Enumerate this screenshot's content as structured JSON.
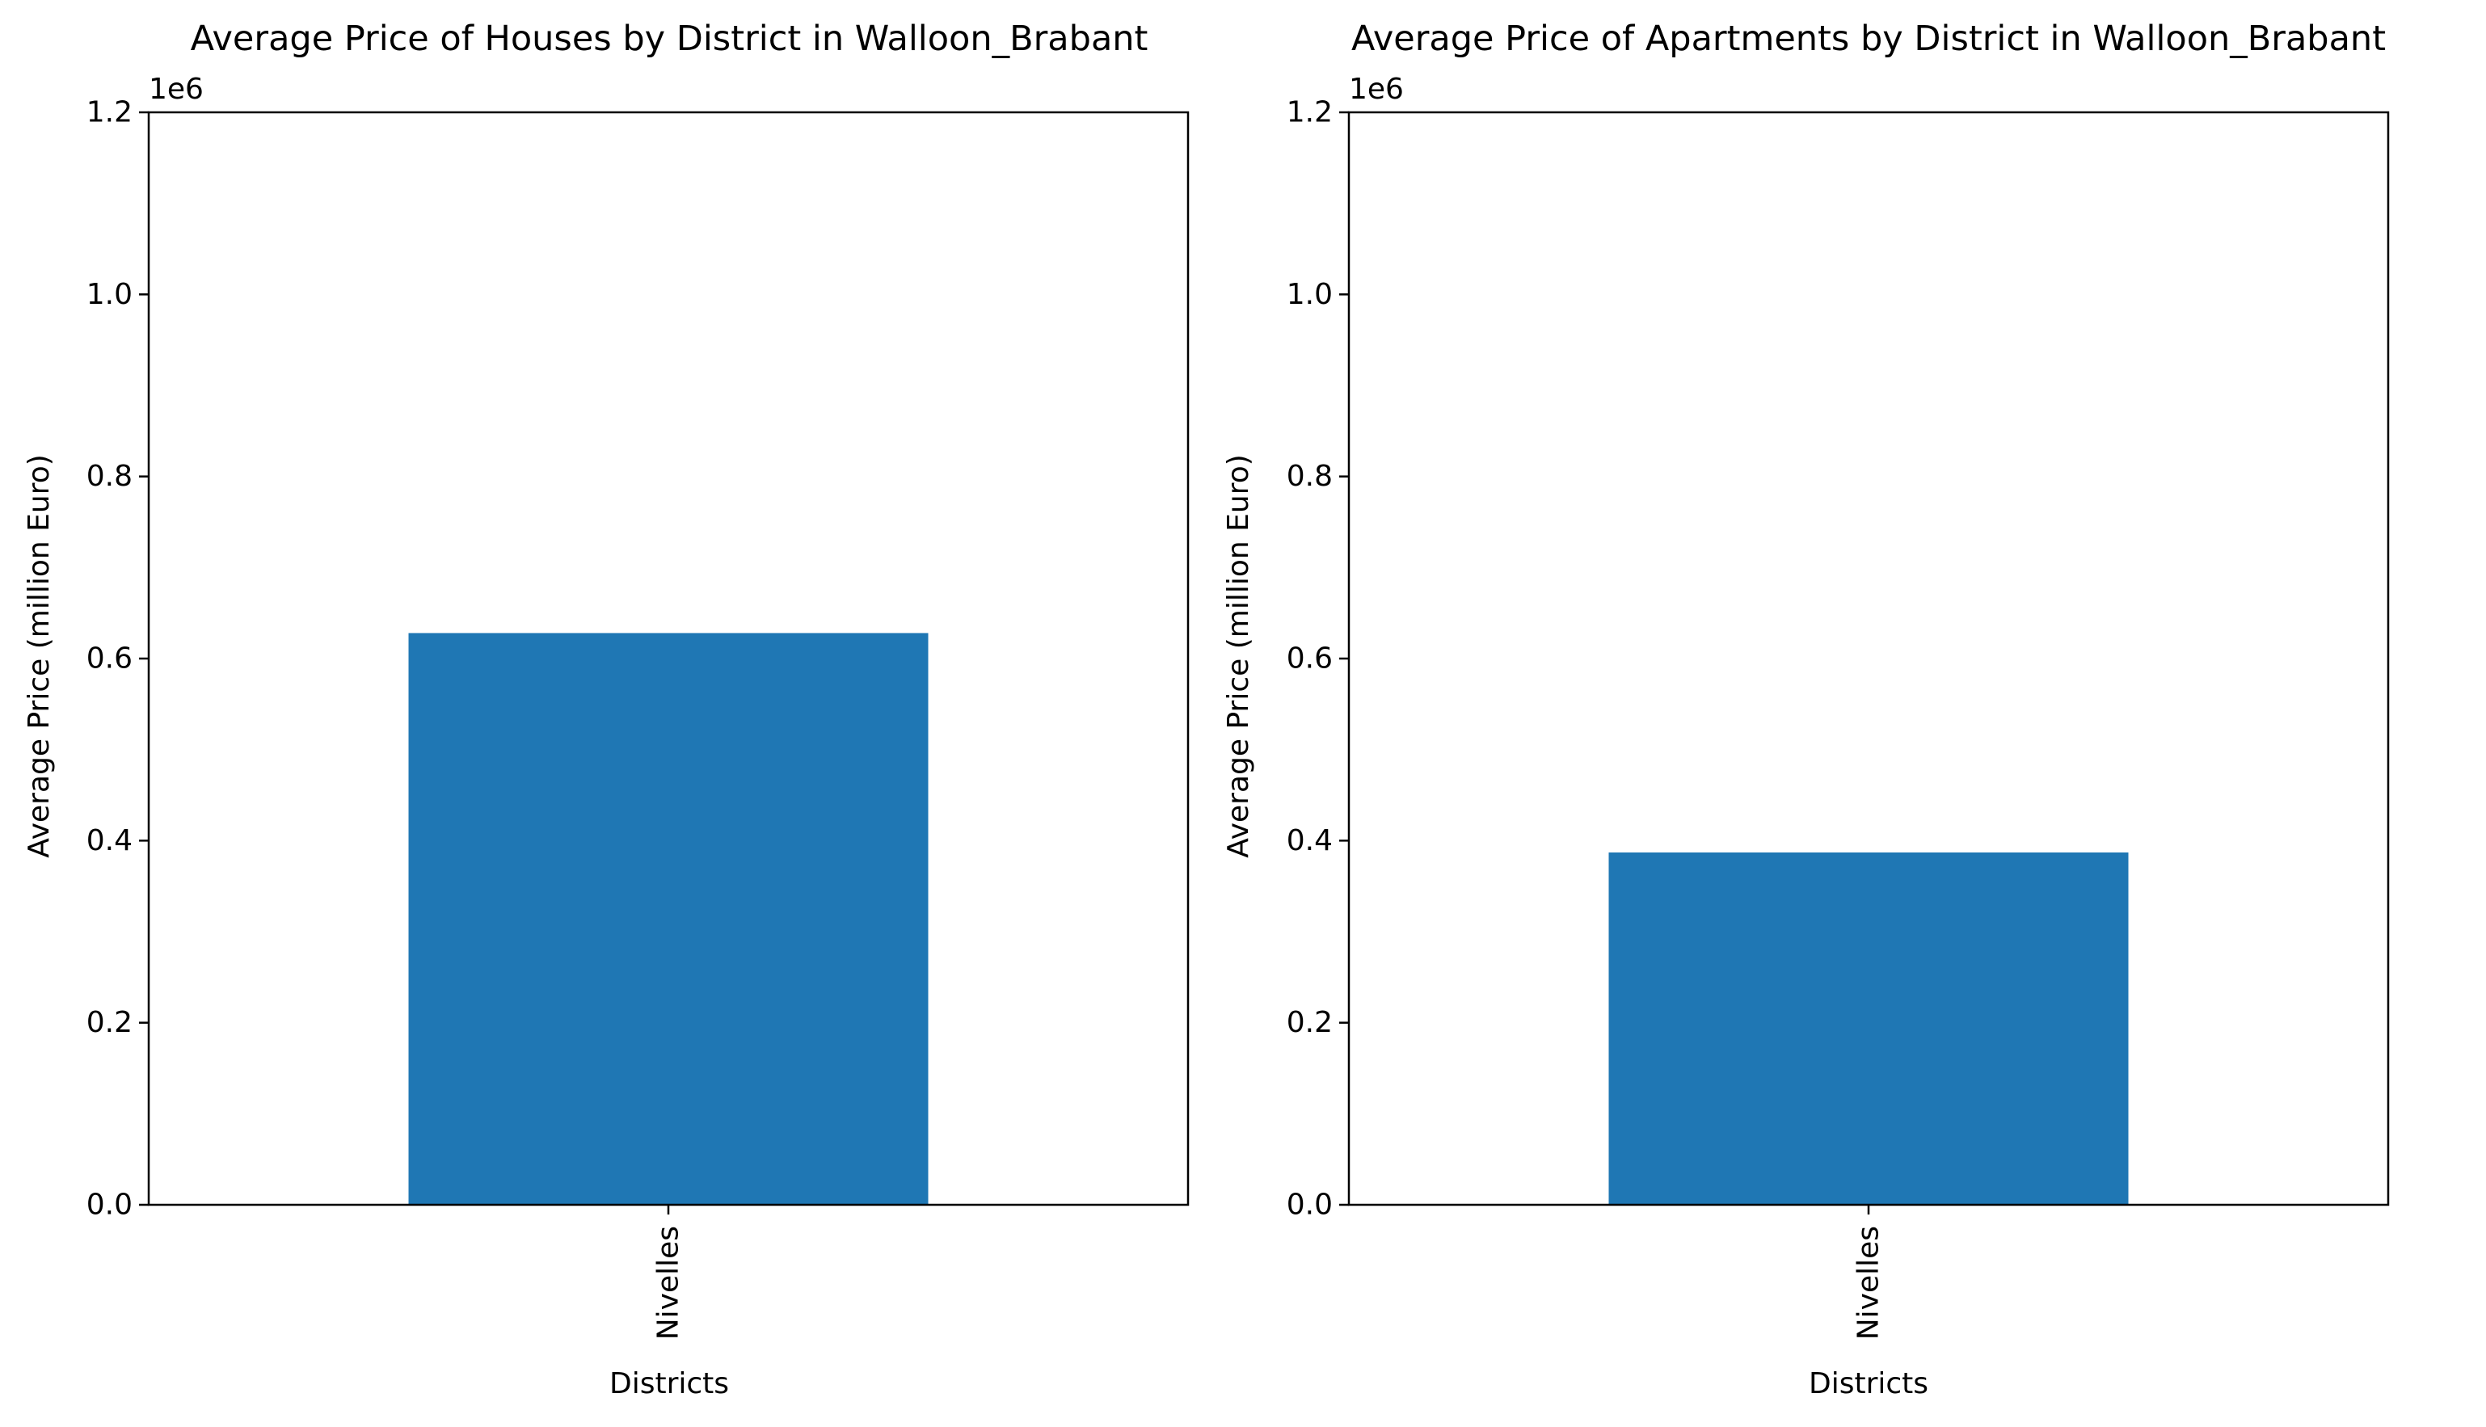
{
  "chart_data": [
    {
      "type": "bar",
      "title": "Average Price of Houses by District in Walloon_Brabant",
      "xlabel": "Districts",
      "ylabel": "Average Price (million Euro)",
      "offset_label": "1e6",
      "categories": [
        "Nivelles"
      ],
      "values": [
        628000
      ],
      "ylim": [
        0,
        1200000
      ],
      "yticks": [
        0,
        200000,
        400000,
        600000,
        800000,
        1000000,
        1200000
      ],
      "ytick_labels": [
        "0.0",
        "0.2",
        "0.4",
        "0.6",
        "0.8",
        "1.0",
        "1.2"
      ],
      "xtick_rotation": "vertical",
      "bar_color": "#1f77b4",
      "grid": false,
      "legend": null
    },
    {
      "type": "bar",
      "title": "Average Price of Apartments by District in Walloon_Brabant",
      "xlabel": "Districts",
      "ylabel": "Average Price (million Euro)",
      "offset_label": "1e6",
      "categories": [
        "Nivelles"
      ],
      "values": [
        387000
      ],
      "ylim": [
        0,
        1200000
      ],
      "yticks": [
        0,
        200000,
        400000,
        600000,
        800000,
        1000000,
        1200000
      ],
      "ytick_labels": [
        "0.0",
        "0.2",
        "0.4",
        "0.6",
        "0.8",
        "1.0",
        "1.2"
      ],
      "xtick_rotation": "vertical",
      "bar_color": "#1f77b4",
      "grid": false,
      "legend": null
    }
  ]
}
